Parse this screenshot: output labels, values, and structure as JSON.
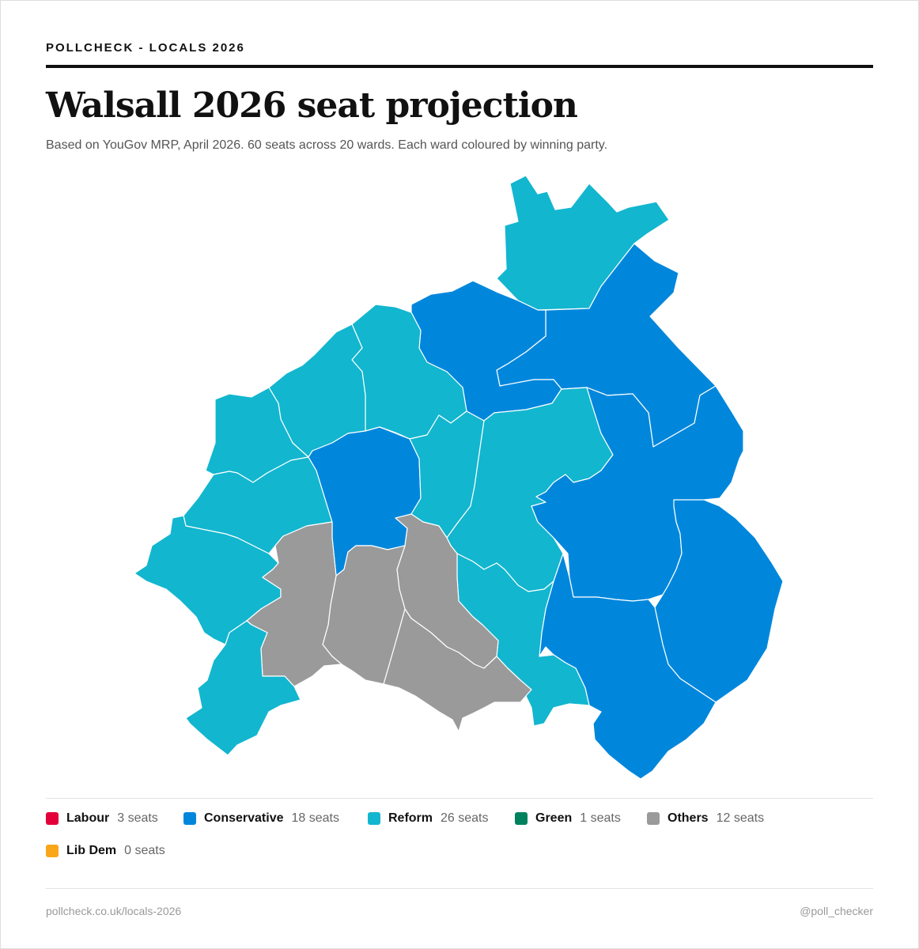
{
  "header": {
    "kicker": "POLLCHECK - LOCALS 2026",
    "title": "Walsall 2026 seat projection",
    "subtitle": "Based on YouGov MRP, April 2026. 60 seats across 20 wards. Each ward coloured by winning party."
  },
  "colors": {
    "labour": "#e4003b",
    "conservative": "#0087dc",
    "reform": "#12b6cf",
    "green": "#02815e",
    "others": "#9a9a9a",
    "libdem": "#faa61a"
  },
  "map": {
    "wards": [
      {
        "id": "w1",
        "party": "Reform"
      },
      {
        "id": "w2",
        "party": "Conservative"
      },
      {
        "id": "w3",
        "party": "Conservative"
      },
      {
        "id": "w4",
        "party": "Reform"
      },
      {
        "id": "w5",
        "party": "Reform"
      },
      {
        "id": "w6",
        "party": "Reform"
      },
      {
        "id": "w7",
        "party": "Reform"
      },
      {
        "id": "w8",
        "party": "Reform"
      },
      {
        "id": "w9",
        "party": "Conservative"
      },
      {
        "id": "w10",
        "party": "Reform"
      },
      {
        "id": "w11",
        "party": "Reform"
      },
      {
        "id": "w12",
        "party": "Conservative"
      },
      {
        "id": "w13",
        "party": "Conservative"
      },
      {
        "id": "w14",
        "party": "Conservative"
      },
      {
        "id": "w15",
        "party": "Reform"
      },
      {
        "id": "w16",
        "party": "Others"
      },
      {
        "id": "w17",
        "party": "Others"
      },
      {
        "id": "w18",
        "party": "Others"
      },
      {
        "id": "w19",
        "party": "Others"
      },
      {
        "id": "w20",
        "party": "Reform"
      }
    ]
  },
  "legend": [
    {
      "key": "labour",
      "label": "Labour",
      "seats": "3 seats"
    },
    {
      "key": "conservative",
      "label": "Conservative",
      "seats": "18 seats"
    },
    {
      "key": "reform",
      "label": "Reform",
      "seats": "26 seats"
    },
    {
      "key": "green",
      "label": "Green",
      "seats": "1 seats"
    },
    {
      "key": "others",
      "label": "Others",
      "seats": "12 seats"
    },
    {
      "key": "libdem",
      "label": "Lib Dem",
      "seats": "0 seats"
    }
  ],
  "footer": {
    "url": "pollcheck.co.uk/locals-2026",
    "handle": "@poll_checker"
  }
}
